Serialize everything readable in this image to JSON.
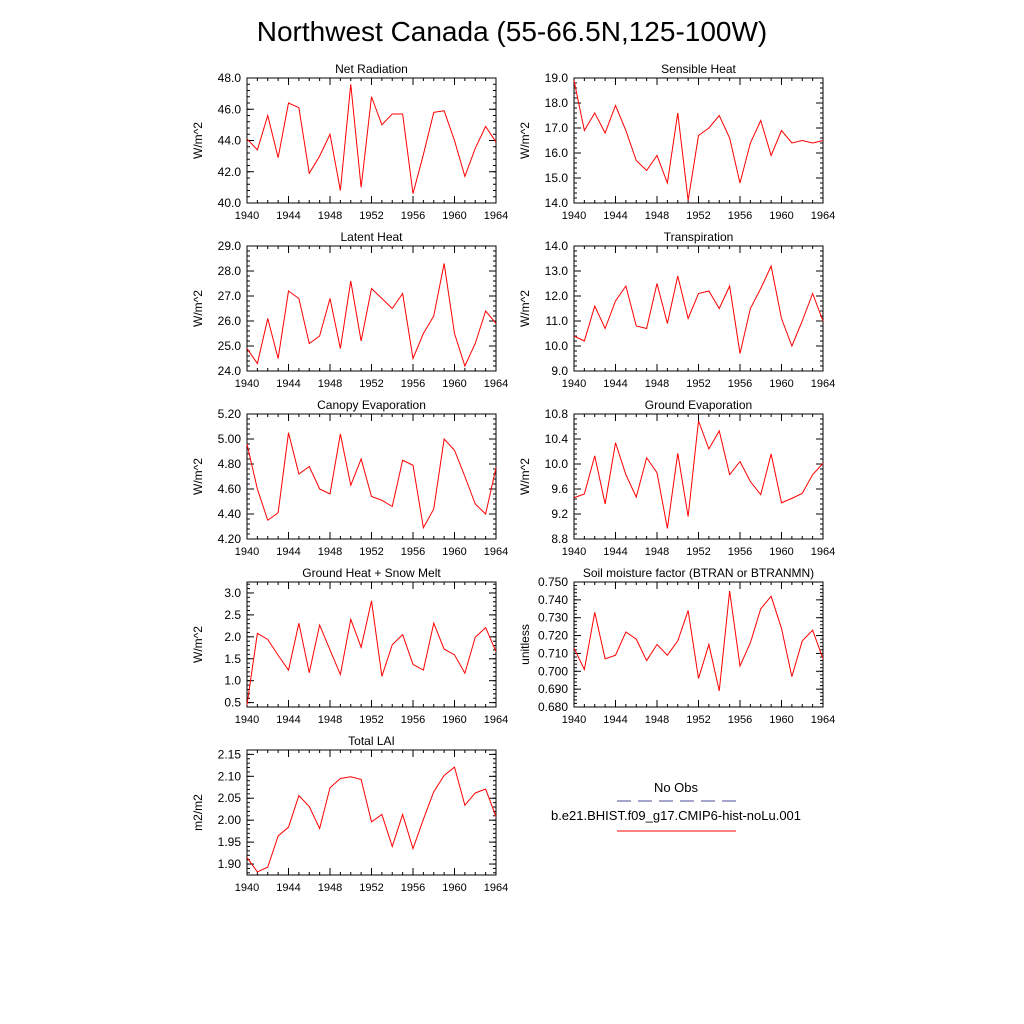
{
  "title": "Northwest Canada (55-66.5N,125-100W)",
  "legend": {
    "obs_label": "No Obs",
    "model_label": "b.e21.BHIST.f09_g17.CMIP6-hist-noLu.001",
    "obs_color": "#4d4d99",
    "model_color": "#ff0000"
  },
  "chart_data": [
    {
      "type": "line",
      "title": "Net Radiation",
      "ylabel": "W/m^2",
      "xlim": [
        1940,
        1964
      ],
      "ylim": [
        40.0,
        48.0
      ],
      "xticks": [
        1940,
        1944,
        1948,
        1952,
        1956,
        1960,
        1964
      ],
      "yticks": [
        40.0,
        42.0,
        44.0,
        46.0,
        48.0
      ],
      "ytick_decimals": 1,
      "x": [
        1940,
        1941,
        1942,
        1943,
        1944,
        1945,
        1946,
        1947,
        1948,
        1949,
        1950,
        1951,
        1952,
        1953,
        1954,
        1955,
        1956,
        1957,
        1958,
        1959,
        1960,
        1961,
        1962,
        1963,
        1964
      ],
      "series": [
        {
          "values": [
            44.1,
            43.4,
            45.6,
            42.9,
            46.4,
            46.1,
            41.9,
            43.0,
            44.4,
            40.8,
            47.6,
            41.0,
            46.8,
            45.0,
            45.7,
            45.7,
            40.6,
            43.1,
            45.8,
            45.9,
            44.0,
            41.7,
            43.5,
            44.9,
            43.9
          ]
        }
      ]
    },
    {
      "type": "line",
      "title": "Sensible Heat",
      "ylabel": "W/m^2",
      "xlim": [
        1940,
        1964
      ],
      "ylim": [
        14.0,
        19.0
      ],
      "xticks": [
        1940,
        1944,
        1948,
        1952,
        1956,
        1960,
        1964
      ],
      "yticks": [
        14.0,
        15.0,
        16.0,
        17.0,
        18.0,
        19.0
      ],
      "ytick_decimals": 1,
      "x": [
        1940,
        1941,
        1942,
        1943,
        1944,
        1945,
        1946,
        1947,
        1948,
        1949,
        1950,
        1951,
        1952,
        1953,
        1954,
        1955,
        1956,
        1957,
        1958,
        1959,
        1960,
        1961,
        1962,
        1963,
        1964
      ],
      "series": [
        {
          "values": [
            18.9,
            16.9,
            17.6,
            16.8,
            17.9,
            16.9,
            15.7,
            15.3,
            15.9,
            14.8,
            17.6,
            14.1,
            16.7,
            17.0,
            17.5,
            16.6,
            14.8,
            16.4,
            17.3,
            15.9,
            16.9,
            16.4,
            16.5,
            16.4,
            16.5
          ]
        }
      ]
    },
    {
      "type": "line",
      "title": "Latent Heat",
      "ylabel": "W/m^2",
      "xlim": [
        1940,
        1964
      ],
      "ylim": [
        24.0,
        29.0
      ],
      "xticks": [
        1940,
        1944,
        1948,
        1952,
        1956,
        1960,
        1964
      ],
      "yticks": [
        24.0,
        25.0,
        26.0,
        27.0,
        28.0,
        29.0
      ],
      "ytick_decimals": 1,
      "x": [
        1940,
        1941,
        1942,
        1943,
        1944,
        1945,
        1946,
        1947,
        1948,
        1949,
        1950,
        1951,
        1952,
        1953,
        1954,
        1955,
        1956,
        1957,
        1958,
        1959,
        1960,
        1961,
        1962,
        1963,
        1964
      ],
      "series": [
        {
          "values": [
            24.9,
            24.3,
            26.1,
            24.5,
            27.2,
            26.9,
            25.1,
            25.4,
            26.9,
            24.9,
            27.6,
            25.2,
            27.3,
            26.9,
            26.5,
            27.1,
            24.5,
            25.5,
            26.2,
            28.3,
            25.5,
            24.2,
            25.1,
            26.4,
            25.9
          ]
        }
      ]
    },
    {
      "type": "line",
      "title": "Transpiration",
      "ylabel": "W/m^2",
      "xlim": [
        1940,
        1964
      ],
      "ylim": [
        9.0,
        14.0
      ],
      "xticks": [
        1940,
        1944,
        1948,
        1952,
        1956,
        1960,
        1964
      ],
      "yticks": [
        9.0,
        10.0,
        11.0,
        12.0,
        13.0,
        14.0
      ],
      "ytick_decimals": 1,
      "x": [
        1940,
        1941,
        1942,
        1943,
        1944,
        1945,
        1946,
        1947,
        1948,
        1949,
        1950,
        1951,
        1952,
        1953,
        1954,
        1955,
        1956,
        1957,
        1958,
        1959,
        1960,
        1961,
        1962,
        1963,
        1964
      ],
      "series": [
        {
          "values": [
            10.4,
            10.2,
            11.6,
            10.7,
            11.8,
            12.4,
            10.8,
            10.7,
            12.5,
            10.9,
            12.8,
            11.1,
            12.1,
            12.2,
            11.5,
            12.4,
            9.7,
            11.5,
            12.3,
            13.2,
            11.1,
            10.0,
            11.0,
            12.1,
            11.0
          ]
        }
      ]
    },
    {
      "type": "line",
      "title": "Canopy Evaporation",
      "ylabel": "W/m^2",
      "xlim": [
        1940,
        1964
      ],
      "ylim": [
        4.2,
        5.2
      ],
      "xticks": [
        1940,
        1944,
        1948,
        1952,
        1956,
        1960,
        1964
      ],
      "yticks": [
        4.2,
        4.4,
        4.6,
        4.8,
        5.0,
        5.2
      ],
      "ytick_decimals": 2,
      "x": [
        1940,
        1941,
        1942,
        1943,
        1944,
        1945,
        1946,
        1947,
        1948,
        1949,
        1950,
        1951,
        1952,
        1953,
        1954,
        1955,
        1956,
        1957,
        1958,
        1959,
        1960,
        1961,
        1962,
        1963,
        1964
      ],
      "series": [
        {
          "values": [
            4.96,
            4.6,
            4.35,
            4.41,
            5.05,
            4.72,
            4.78,
            4.6,
            4.56,
            5.04,
            4.63,
            4.84,
            4.54,
            4.51,
            4.46,
            4.83,
            4.79,
            4.29,
            4.44,
            5.0,
            4.91,
            4.7,
            4.48,
            4.4,
            4.77
          ]
        }
      ]
    },
    {
      "type": "line",
      "title": "Ground Evaporation",
      "ylabel": "W/m^2",
      "xlim": [
        1940,
        1964
      ],
      "ylim": [
        8.8,
        10.8
      ],
      "xticks": [
        1940,
        1944,
        1948,
        1952,
        1956,
        1960,
        1964
      ],
      "yticks": [
        8.8,
        9.2,
        9.6,
        10.0,
        10.4,
        10.8
      ],
      "ytick_decimals": 1,
      "x": [
        1940,
        1941,
        1942,
        1943,
        1944,
        1945,
        1946,
        1947,
        1948,
        1949,
        1950,
        1951,
        1952,
        1953,
        1954,
        1955,
        1956,
        1957,
        1958,
        1959,
        1960,
        1961,
        1962,
        1963,
        1964
      ],
      "series": [
        {
          "values": [
            9.46,
            9.52,
            10.13,
            9.36,
            10.34,
            9.83,
            9.47,
            10.1,
            9.86,
            8.97,
            10.17,
            9.16,
            10.69,
            10.24,
            10.53,
            9.83,
            10.04,
            9.72,
            9.51,
            10.16,
            9.38,
            9.45,
            9.53,
            9.83,
            10.01
          ]
        }
      ]
    },
    {
      "type": "line",
      "title": "Ground Heat + Snow Melt",
      "ylabel": "W/m^2",
      "xlim": [
        1940,
        1964
      ],
      "ylim": [
        0.4,
        3.25
      ],
      "xticks": [
        1940,
        1944,
        1948,
        1952,
        1956,
        1960,
        1964
      ],
      "yticks": [
        0.5,
        1.0,
        1.5,
        2.0,
        2.5,
        3.0
      ],
      "ytick_decimals": 1,
      "x": [
        1940,
        1941,
        1942,
        1943,
        1944,
        1945,
        1946,
        1947,
        1948,
        1949,
        1950,
        1951,
        1952,
        1953,
        1954,
        1955,
        1956,
        1957,
        1958,
        1959,
        1960,
        1961,
        1962,
        1963,
        1964
      ],
      "series": [
        {
          "values": [
            0.45,
            2.08,
            1.94,
            1.58,
            1.24,
            2.31,
            1.18,
            2.27,
            1.7,
            1.14,
            2.4,
            1.76,
            2.82,
            1.1,
            1.82,
            2.05,
            1.37,
            1.24,
            2.31,
            1.72,
            1.59,
            1.17,
            1.99,
            2.21,
            1.66
          ]
        }
      ]
    },
    {
      "type": "line",
      "title": "Soil moisture factor (BTRAN or BTRANMN)",
      "ylabel": "unitless",
      "xlim": [
        1940,
        1964
      ],
      "ylim": [
        0.68,
        0.75
      ],
      "xticks": [
        1940,
        1944,
        1948,
        1952,
        1956,
        1960,
        1964
      ],
      "yticks": [
        0.68,
        0.69,
        0.7,
        0.71,
        0.72,
        0.73,
        0.74,
        0.75
      ],
      "ytick_decimals": 3,
      "x": [
        1940,
        1941,
        1942,
        1943,
        1944,
        1945,
        1946,
        1947,
        1948,
        1949,
        1950,
        1951,
        1952,
        1953,
        1954,
        1955,
        1956,
        1957,
        1958,
        1959,
        1960,
        1961,
        1962,
        1963,
        1964
      ],
      "series": [
        {
          "values": [
            0.713,
            0.701,
            0.733,
            0.707,
            0.709,
            0.722,
            0.718,
            0.706,
            0.715,
            0.709,
            0.717,
            0.734,
            0.696,
            0.715,
            0.689,
            0.745,
            0.703,
            0.716,
            0.735,
            0.742,
            0.724,
            0.697,
            0.717,
            0.723,
            0.707
          ]
        }
      ]
    },
    {
      "type": "line",
      "title": "Total LAI",
      "ylabel": "m2/m2",
      "xlim": [
        1940,
        1964
      ],
      "ylim": [
        1.875,
        2.16
      ],
      "xticks": [
        1940,
        1944,
        1948,
        1952,
        1956,
        1960,
        1964
      ],
      "yticks": [
        1.9,
        1.95,
        2.0,
        2.05,
        2.1,
        2.15
      ],
      "ytick_decimals": 2,
      "x": [
        1940,
        1941,
        1942,
        1943,
        1944,
        1945,
        1946,
        1947,
        1948,
        1949,
        1950,
        1951,
        1952,
        1953,
        1954,
        1955,
        1956,
        1957,
        1958,
        1959,
        1960,
        1961,
        1962,
        1963,
        1964
      ],
      "series": [
        {
          "values": [
            1.915,
            1.882,
            1.893,
            1.964,
            1.984,
            2.056,
            2.031,
            1.981,
            2.074,
            2.095,
            2.099,
            2.093,
            1.996,
            2.013,
            1.94,
            2.013,
            1.935,
            2.002,
            2.065,
            2.102,
            2.121,
            2.034,
            2.062,
            2.071,
            2.008
          ]
        }
      ]
    }
  ]
}
